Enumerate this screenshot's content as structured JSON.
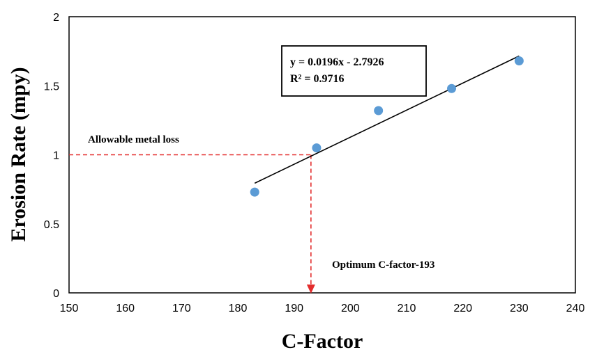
{
  "chart_data": {
    "type": "scatter",
    "xlabel": "C-Factor",
    "ylabel": "Erosion Rate (mpy)",
    "xlim": [
      150,
      240
    ],
    "ylim": [
      0,
      2
    ],
    "x_ticks": [
      150,
      160,
      170,
      180,
      190,
      200,
      210,
      220,
      230,
      240
    ],
    "y_ticks": [
      0,
      0.5,
      1,
      1.5,
      2
    ],
    "grid": false,
    "series": [
      {
        "points": [
          {
            "x": 183,
            "y": 0.73
          },
          {
            "x": 194,
            "y": 1.05
          },
          {
            "x": 205,
            "y": 1.32
          },
          {
            "x": 218,
            "y": 1.48
          },
          {
            "x": 230,
            "y": 1.68
          }
        ],
        "color": "#5b9bd5"
      }
    ],
    "trendline": {
      "slope": 0.0196,
      "intercept": -2.7926,
      "x_range": [
        183,
        230
      ],
      "color": "#000000",
      "equation_label": "y = 0.0196x - 2.7926",
      "r2_label": "R² = 0.9716"
    },
    "reference": {
      "x": 193,
      "y": 1,
      "color": "#e32d2d",
      "y_label": "Allowable metal loss",
      "x_label": "Optimum C-factor-193"
    }
  }
}
